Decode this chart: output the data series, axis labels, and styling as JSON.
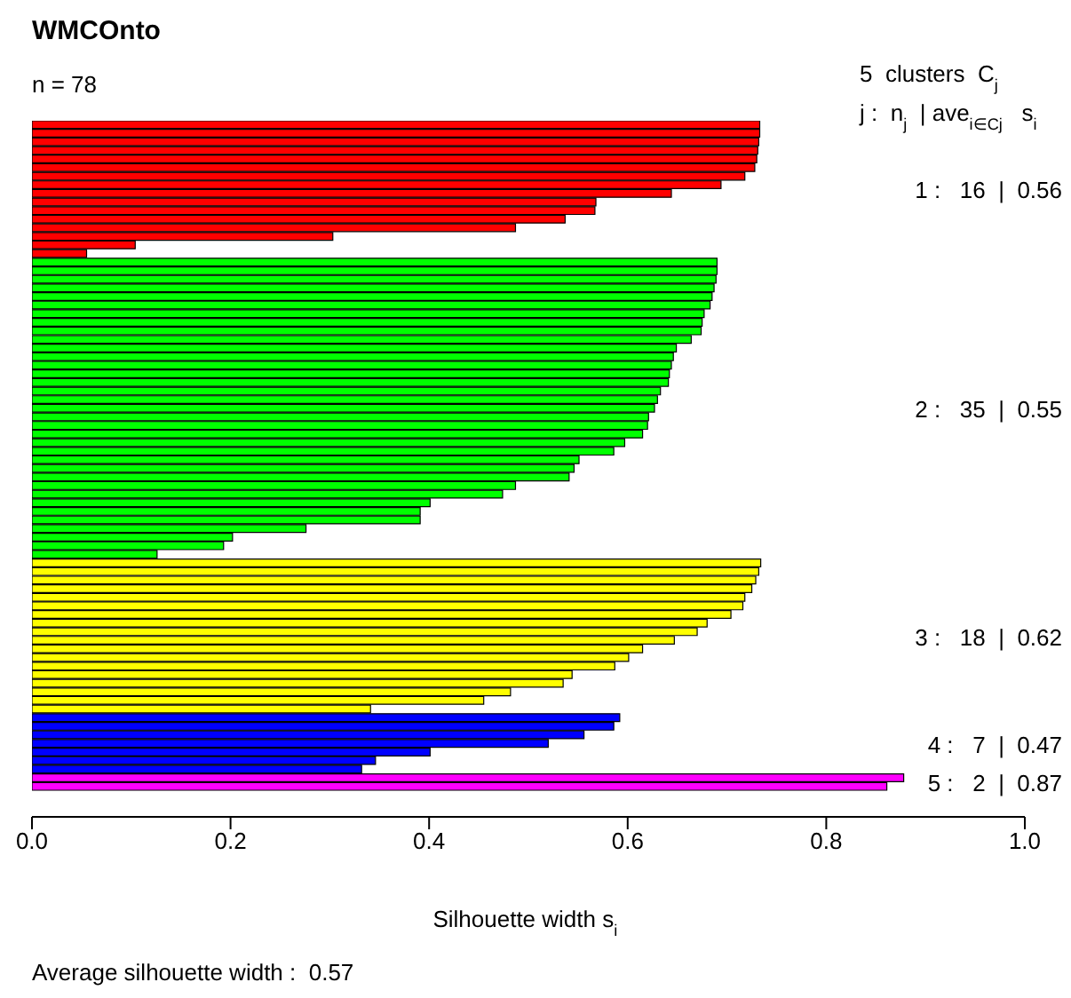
{
  "chart_data": {
    "type": "bar",
    "orientation": "horizontal",
    "title": "WMCOnto",
    "xlabel": "Silhouette width s$_{i}$",
    "annotations": [
      "n = 78",
      "5  clusters  C$_{j}$",
      "j :  n$_{j}$ | ave$_{i∈Cj}$  s$_{i}$",
      "1 :   16  |  0.56",
      "2 :   35  |  0.55",
      "3 :   18  |  0.62",
      "4 :   7  |  0.47",
      "5 :   2  |  0.87",
      "Average silhouette width :  0.57"
    ],
    "categories": [
      null,
      null,
      null,
      null,
      null,
      null,
      null,
      null,
      null,
      null,
      null,
      null,
      null,
      null,
      null,
      null,
      null,
      null,
      null,
      null,
      null,
      null,
      null,
      null,
      null,
      null,
      null,
      null,
      null,
      null,
      null,
      null,
      null,
      null,
      null,
      null,
      null,
      null,
      null,
      null,
      null,
      null,
      null,
      null,
      null,
      null,
      null,
      null,
      null,
      null,
      null,
      null,
      null,
      null,
      null,
      null,
      null,
      null,
      null,
      null,
      null,
      null,
      null,
      null,
      null,
      null,
      null,
      null,
      null,
      null,
      null,
      null,
      null,
      null,
      null,
      null,
      null,
      null
    ],
    "values": [
      0.733,
      0.733,
      0.732,
      0.731,
      0.73,
      0.728,
      0.718,
      0.694,
      0.644,
      0.568,
      0.567,
      0.537,
      0.487,
      0.303,
      0.104,
      0.055,
      0.69,
      0.69,
      0.689,
      0.687,
      0.685,
      0.683,
      0.677,
      0.675,
      0.674,
      0.664,
      0.649,
      0.646,
      0.644,
      0.642,
      0.641,
      0.633,
      0.63,
      0.627,
      0.621,
      0.62,
      0.615,
      0.597,
      0.586,
      0.551,
      0.546,
      0.541,
      0.487,
      0.474,
      0.401,
      0.391,
      0.391,
      0.276,
      0.202,
      0.193,
      0.126,
      0.734,
      0.732,
      0.729,
      0.725,
      0.718,
      0.716,
      0.704,
      0.68,
      0.67,
      0.647,
      0.615,
      0.601,
      0.587,
      0.544,
      0.535,
      0.482,
      0.455,
      0.341,
      0.592,
      0.586,
      0.556,
      0.52,
      0.401,
      0.346,
      0.332,
      0.878,
      0.861
    ],
    "colors": [
      "#ff0000",
      "#ff0000",
      "#ff0000",
      "#ff0000",
      "#ff0000",
      "#ff0000",
      "#ff0000",
      "#ff0000",
      "#ff0000",
      "#ff0000",
      "#ff0000",
      "#ff0000",
      "#ff0000",
      "#ff0000",
      "#ff0000",
      "#ff0000",
      "#00ff00",
      "#00ff00",
      "#00ff00",
      "#00ff00",
      "#00ff00",
      "#00ff00",
      "#00ff00",
      "#00ff00",
      "#00ff00",
      "#00ff00",
      "#00ff00",
      "#00ff00",
      "#00ff00",
      "#00ff00",
      "#00ff00",
      "#00ff00",
      "#00ff00",
      "#00ff00",
      "#00ff00",
      "#00ff00",
      "#00ff00",
      "#00ff00",
      "#00ff00",
      "#00ff00",
      "#00ff00",
      "#00ff00",
      "#00ff00",
      "#00ff00",
      "#00ff00",
      "#00ff00",
      "#00ff00",
      "#00ff00",
      "#00ff00",
      "#00ff00",
      "#00ff00",
      "#ffff00",
      "#ffff00",
      "#ffff00",
      "#ffff00",
      "#ffff00",
      "#ffff00",
      "#ffff00",
      "#ffff00",
      "#ffff00",
      "#ffff00",
      "#ffff00",
      "#ffff00",
      "#ffff00",
      "#ffff00",
      "#ffff00",
      "#ffff00",
      "#ffff00",
      "#ffff00",
      "#0000ff",
      "#0000ff",
      "#0000ff",
      "#0000ff",
      "#0000ff",
      "#0000ff",
      "#0000ff",
      "#ff00ff",
      "#ff00ff"
    ],
    "xlim": [
      0,
      1
    ],
    "xticks": [
      {
        "value": 0,
        "label": "0.0"
      },
      0.2,
      0.4,
      0.6,
      0.8,
      {
        "value": 1,
        "label": "1.0"
      }
    ]
  }
}
